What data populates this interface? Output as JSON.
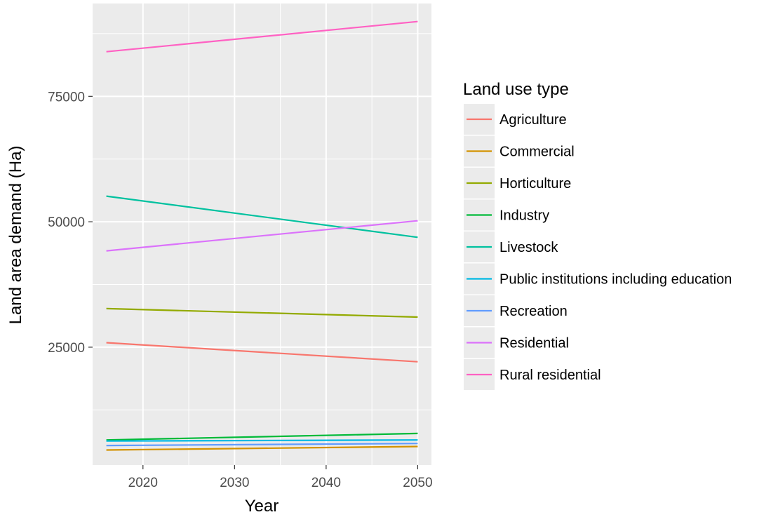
{
  "chart_data": {
    "type": "line",
    "title": "",
    "xlabel": "Year",
    "ylabel": "Land area demand (Ha)",
    "xlim": [
      2014.5,
      2051.5
    ],
    "ylim": [
      1500,
      93500
    ],
    "x_ticks": [
      2020,
      2030,
      2040,
      2050
    ],
    "y_ticks": [
      25000,
      50000,
      75000
    ],
    "x_ticks_minor": [
      2025,
      2035,
      2045
    ],
    "y_ticks_minor": [
      12500,
      37500,
      62500,
      87500
    ],
    "grid": true,
    "legend": {
      "title": "Land use type",
      "position": "right"
    },
    "x": [
      2016,
      2050
    ],
    "series": [
      {
        "name": "Agriculture",
        "color": "#F8766D",
        "values": [
          25900,
          22100
        ]
      },
      {
        "name": "Commercial",
        "color": "#D39200",
        "values": [
          4500,
          5200
        ]
      },
      {
        "name": "Horticulture",
        "color": "#93AA00",
        "values": [
          32700,
          31000
        ]
      },
      {
        "name": "Industry",
        "color": "#00BA38",
        "values": [
          6500,
          7800
        ]
      },
      {
        "name": "Livestock",
        "color": "#00C19F",
        "values": [
          55100,
          46900
        ]
      },
      {
        "name": "Public institutions including education",
        "color": "#00B9E3",
        "values": [
          6300,
          6500
        ]
      },
      {
        "name": "Recreation",
        "color": "#619CFF",
        "values": [
          5400,
          5800
        ]
      },
      {
        "name": "Residential",
        "color": "#DB72FB",
        "values": [
          44200,
          50200
        ]
      },
      {
        "name": "Rural residential",
        "color": "#FF61C3",
        "values": [
          83900,
          89900
        ]
      }
    ]
  }
}
